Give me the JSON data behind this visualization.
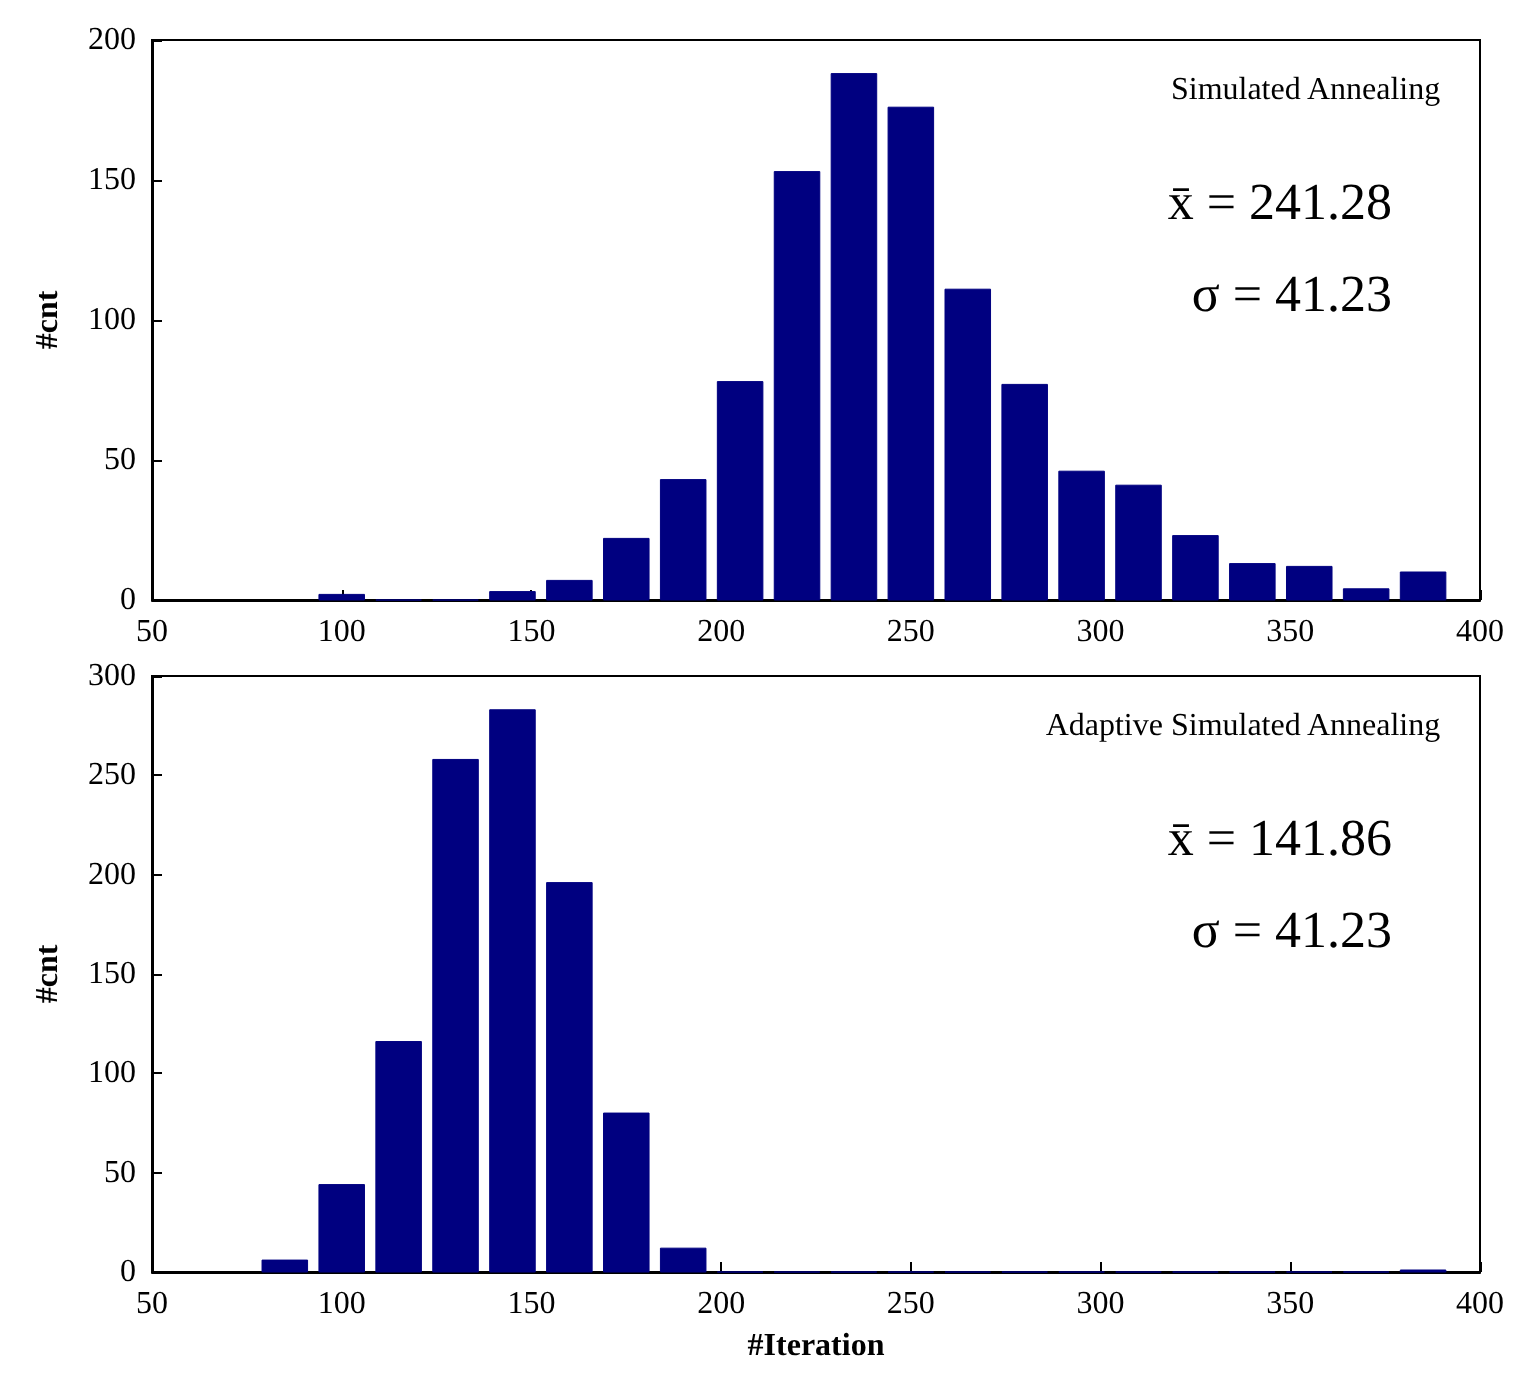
{
  "chart_data": [
    {
      "type": "histogram",
      "title": "Simulated Annealing",
      "ylabel": "#cnt",
      "color": "#000080",
      "bins": [
        92.5,
        107.5,
        122.5,
        137.5,
        152.5,
        167.5,
        182.5,
        197.5,
        212.5,
        227.5,
        242.5,
        257.5,
        272.5,
        287.5,
        302.5,
        317.5,
        332.5,
        347.5,
        362.5,
        377.5,
        392.5
      ],
      "values": [
        2,
        0,
        0,
        3,
        7,
        22,
        43,
        78,
        153,
        188,
        176,
        111,
        77,
        46,
        41,
        23,
        13,
        12,
        4,
        10
      ],
      "xlim": [
        50,
        400
      ],
      "xticks": [
        50,
        100,
        150,
        200,
        250,
        300,
        350,
        400
      ],
      "ylim": [
        0,
        200
      ],
      "yticks": [
        0,
        50,
        100,
        150,
        200
      ],
      "annotations": [
        "x̄ = 241.28",
        "σ = 41.23"
      ]
    },
    {
      "type": "histogram",
      "title": "Adaptive Simulated Annealing",
      "xlabel": "#Iteration",
      "ylabel": "#cnt",
      "color": "#000080",
      "bins": [
        77.5,
        92.5,
        107.5,
        122.5,
        137.5,
        152.5,
        167.5,
        182.5,
        197.5,
        212.5,
        227.5,
        242.5,
        257.5,
        272.5,
        287.5,
        302.5,
        317.5,
        332.5,
        347.5,
        362.5,
        377.5,
        392.5
      ],
      "values": [
        6,
        44,
        116,
        258,
        283,
        196,
        80,
        12,
        0,
        0,
        0,
        0,
        0,
        0,
        0,
        0,
        0,
        0,
        0,
        0,
        1
      ],
      "xlim": [
        50,
        400
      ],
      "xticks": [
        50,
        100,
        150,
        200,
        250,
        300,
        350,
        400
      ],
      "ylim": [
        0,
        300
      ],
      "yticks": [
        0,
        50,
        100,
        150,
        200,
        250,
        300
      ],
      "annotations": [
        "x̄ = 141.86",
        "σ = 41.23"
      ]
    }
  ]
}
